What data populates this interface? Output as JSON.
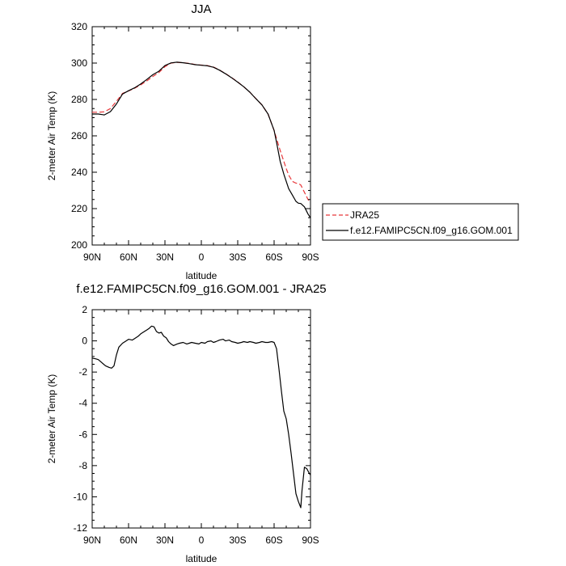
{
  "chart_data": [
    {
      "type": "line",
      "title": "JJA",
      "xlabel": "latitude",
      "ylabel": "2-meter Air Temp (K)",
      "xlim": [
        90,
        -90
      ],
      "ylim": [
        200,
        320
      ],
      "x_ticks": [
        90,
        60,
        30,
        0,
        -30,
        -60,
        -90
      ],
      "x_tick_labels": [
        "90N",
        "60N",
        "30N",
        "0",
        "30S",
        "60S",
        "90S"
      ],
      "y_ticks": [
        200,
        220,
        240,
        260,
        280,
        300,
        320
      ],
      "y_tick_labels": [
        "200",
        "220",
        "240",
        "260",
        "280",
        "300",
        "320"
      ],
      "legend_placement": "outside-right",
      "series": [
        {
          "name": "JRA25",
          "color": "#e8383b",
          "dash": "dashed",
          "x": [
            90,
            85,
            80,
            75,
            70,
            65,
            60,
            55,
            50,
            45,
            40,
            35,
            30,
            25,
            20,
            15,
            10,
            5,
            0,
            -5,
            -10,
            -15,
            -20,
            -25,
            -30,
            -35,
            -40,
            -45,
            -50,
            -55,
            -60,
            -62,
            -65,
            -68,
            -70,
            -72,
            -75,
            -78,
            -80,
            -82,
            -85,
            -88,
            -90
          ],
          "y": [
            273.0,
            273.0,
            273.2,
            275.0,
            279.0,
            283.3,
            284.7,
            286.2,
            288.0,
            290.2,
            292.6,
            294.8,
            298.0,
            300.0,
            300.4,
            300.2,
            299.8,
            299.2,
            298.9,
            298.6,
            297.8,
            296.2,
            294.2,
            292.0,
            289.6,
            287.0,
            284.0,
            280.5,
            277.0,
            272.0,
            263.0,
            258.5,
            252.0,
            246.0,
            242.0,
            238.5,
            235.0,
            234.0,
            233.8,
            233.0,
            229.0,
            225.0,
            223.5
          ]
        },
        {
          "name": "f.e12.FAMIPC5CN.f09_g16.GOM.001",
          "color": "#000000",
          "dash": "solid",
          "x": [
            90,
            85,
            80,
            75,
            70,
            65,
            60,
            55,
            50,
            45,
            40,
            35,
            30,
            25,
            20,
            15,
            10,
            5,
            0,
            -5,
            -10,
            -15,
            -20,
            -25,
            -30,
            -35,
            -40,
            -45,
            -50,
            -55,
            -60,
            -62,
            -65,
            -68,
            -70,
            -72,
            -75,
            -78,
            -80,
            -82,
            -85,
            -88,
            -90
          ],
          "y": [
            272.0,
            272.0,
            271.5,
            273.3,
            277.5,
            283.0,
            284.8,
            286.4,
            288.5,
            291.0,
            293.6,
            295.5,
            298.6,
            300.1,
            300.5,
            300.2,
            299.7,
            299.1,
            298.8,
            298.5,
            297.7,
            296.1,
            294.1,
            291.9,
            289.5,
            287.0,
            284.0,
            280.4,
            277.0,
            272.0,
            263.0,
            256.5,
            246.0,
            239.0,
            235.0,
            231.0,
            227.5,
            224.0,
            223.0,
            222.8,
            221.0,
            217.0,
            215.0
          ]
        }
      ]
    },
    {
      "type": "line",
      "title": "f.e12.FAMIPC5CN.f09_g16.GOM.001 - JRA25",
      "xlabel": "latitude",
      "ylabel": "2-meter Air Temp (K)",
      "xlim": [
        90,
        -90
      ],
      "ylim": [
        -12,
        2
      ],
      "x_ticks": [
        90,
        60,
        30,
        0,
        -30,
        -60,
        -90
      ],
      "x_tick_labels": [
        "90N",
        "60N",
        "30N",
        "0",
        "30S",
        "60S",
        "90S"
      ],
      "y_ticks": [
        -12,
        -10,
        -8,
        -6,
        -4,
        -2,
        0,
        2
      ],
      "y_tick_labels": [
        "-12",
        "-10",
        "-8",
        "-6",
        "-4",
        "-2",
        "0",
        "2"
      ],
      "series": [
        {
          "color": "#000000",
          "dash": "solid",
          "x": [
            90,
            87,
            85,
            82,
            79,
            76,
            74,
            72,
            70,
            68,
            65,
            62,
            60,
            57,
            55,
            52,
            50,
            47,
            45,
            43,
            41,
            39,
            37,
            35,
            33,
            31,
            29,
            27,
            25,
            23,
            20,
            18,
            15,
            12,
            10,
            8,
            5,
            2,
            0,
            -3,
            -5,
            -8,
            -10,
            -12,
            -15,
            -18,
            -20,
            -23,
            -25,
            -28,
            -30,
            -33,
            -35,
            -38,
            -40,
            -43,
            -45,
            -48,
            -50,
            -53,
            -55,
            -58,
            -60,
            -62,
            -64,
            -66,
            -68,
            -70,
            -72,
            -74,
            -76,
            -78,
            -80,
            -82,
            -83,
            -85,
            -87,
            -89,
            -90
          ],
          "y": [
            -1.1,
            -1.15,
            -1.2,
            -1.4,
            -1.6,
            -1.7,
            -1.75,
            -1.6,
            -0.9,
            -0.4,
            -0.15,
            0.0,
            0.1,
            0.05,
            0.15,
            0.3,
            0.45,
            0.6,
            0.7,
            0.8,
            0.95,
            0.9,
            0.6,
            0.5,
            0.55,
            0.3,
            0.2,
            -0.05,
            -0.2,
            -0.3,
            -0.2,
            -0.15,
            -0.1,
            -0.2,
            -0.15,
            -0.1,
            -0.15,
            -0.2,
            -0.1,
            -0.15,
            -0.05,
            0.0,
            -0.1,
            -0.05,
            0.05,
            0.1,
            0.0,
            0.05,
            -0.05,
            -0.1,
            -0.15,
            -0.1,
            -0.05,
            -0.1,
            -0.05,
            -0.1,
            -0.15,
            -0.1,
            -0.05,
            -0.1,
            -0.1,
            -0.05,
            -0.1,
            -0.5,
            -1.8,
            -3.2,
            -4.5,
            -5.0,
            -6.0,
            -7.2,
            -8.5,
            -9.8,
            -10.3,
            -10.7,
            -9.6,
            -8.1,
            -8.2,
            -8.5,
            -8.6
          ]
        }
      ]
    }
  ]
}
